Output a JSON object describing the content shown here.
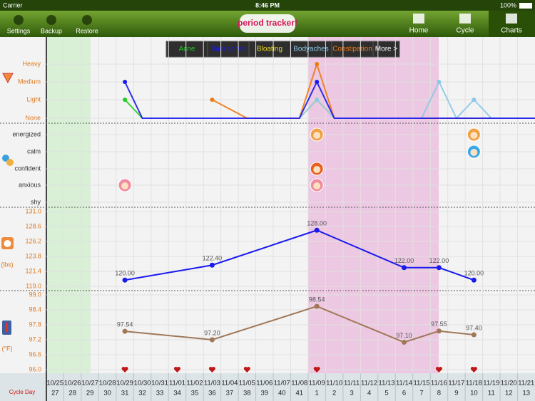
{
  "status_bar": {
    "carrier": "Carrier",
    "time": "8:46 PM",
    "battery": "100%"
  },
  "toolbar": {
    "left": [
      "Settings",
      "Backup",
      "Restore"
    ],
    "logo": "period tracker!",
    "right": [
      "Home",
      "Cycle",
      "Charts"
    ]
  },
  "symptom_filters": [
    {
      "label": "Acne",
      "color": "#22cc22"
    },
    {
      "label": "Backaches",
      "color": "#1a1aee"
    },
    {
      "label": "Bloating",
      "color": "#e8d820"
    },
    {
      "label": "Bodyaches",
      "color": "#8cc8e8"
    },
    {
      "label": "Constipation",
      "color": "#f07a10"
    },
    {
      "label": "More >",
      "color": "#ffffff"
    }
  ],
  "symptom_levels": [
    "Heavy",
    "Medium",
    "Light",
    "None"
  ],
  "moods": [
    "energized",
    "calm",
    "confident",
    "anxious",
    "shy"
  ],
  "weight": {
    "unit": "(lbs)",
    "color": "#1a1aee",
    "ylim": [
      119,
      131
    ],
    "yticks": [
      {
        "value": 131,
        "label": "131.0"
      },
      128.6,
      126.2,
      123.8,
      121.4,
      {
        "value": 119,
        "label": "119.0"
      }
    ],
    "x": [
      "10/29",
      "11/03",
      "11/09",
      "11/14",
      "11/16",
      "11/18"
    ],
    "values": [
      120,
      122.4,
      128,
      122,
      122,
      120
    ],
    "value_labels": [
      "120.00",
      "122.40",
      "128.00",
      "122.00",
      "122.00",
      "120.00"
    ]
  },
  "temperature": {
    "unit": "(°F)",
    "color": "#a07858",
    "ylim": [
      96,
      99
    ],
    "yticks": [
      {
        "value": 99,
        "label": "99.0"
      },
      98.4,
      97.8,
      97.2,
      96.6,
      {
        "value": 96,
        "label": "96.0"
      }
    ],
    "x": [
      "10/29",
      "11/03",
      "11/09",
      "11/14",
      "11/16",
      "11/18"
    ],
    "values": [
      97.54,
      97.2,
      98.54,
      97.1,
      97.55,
      97.4
    ],
    "value_labels": [
      "97.54",
      "97.20",
      "98.54",
      "97.10",
      "97.55",
      "97.40"
    ]
  },
  "dates": [
    "10/25",
    "10/26",
    "10/27",
    "10/28",
    "10/29",
    "10/30",
    "10/31",
    "11/01",
    "11/02",
    "11/03",
    "11/04",
    "11/05",
    "11/06",
    "11/07",
    "11/08",
    "11/09",
    "11/10",
    "11/11",
    "11/12",
    "11/13",
    "11/14",
    "11/15",
    "11/16",
    "11/17",
    "11/18",
    "11/19",
    "11/20",
    "11/21"
  ],
  "cycle_day_label": "Cycle Day",
  "cycle_days": [
    27,
    28,
    29,
    30,
    31,
    32,
    33,
    34,
    35,
    36,
    37,
    38,
    39,
    40,
    41,
    1,
    2,
    3,
    4,
    5,
    6,
    7,
    8,
    9,
    10,
    11,
    12,
    13
  ]
}
